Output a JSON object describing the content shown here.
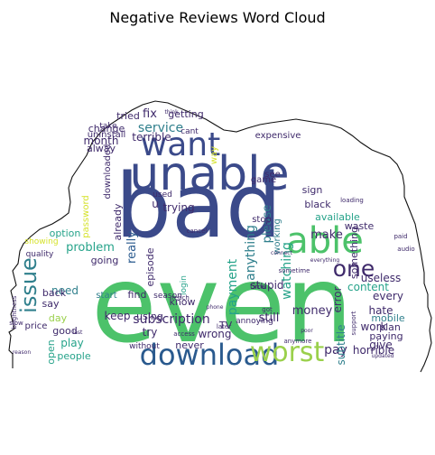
{
  "chart_data": {
    "type": "wordcloud",
    "title": "Negative Reviews Word Cloud",
    "palette": [
      "#3b4a8a",
      "#4cc26a",
      "#2f7f8c",
      "#3f2a6b",
      "#9ad04b",
      "#d5e22a",
      "#26a38a",
      "#2a5a8e",
      "#56106c",
      "#7b2e8a"
    ],
    "words": [
      {
        "text": "even",
        "weight": 100,
        "color": "#4cc26a"
      },
      {
        "text": "bad",
        "weight": 92,
        "color": "#3b4a8a"
      },
      {
        "text": "unable",
        "weight": 52,
        "color": "#3b4a8a"
      },
      {
        "text": "able",
        "weight": 40,
        "color": "#4cc26a"
      },
      {
        "text": "want",
        "weight": 35,
        "color": "#3b4a8a"
      },
      {
        "text": "download",
        "weight": 33,
        "color": "#2a5a8e"
      },
      {
        "text": "worst",
        "weight": 30,
        "color": "#9ad04b"
      },
      {
        "text": "one",
        "weight": 24,
        "color": "#3f2a6b"
      },
      {
        "text": "issue",
        "weight": 22,
        "color": "#2f7f8c"
      },
      {
        "text": "service",
        "weight": 14,
        "color": "#2f7f8c"
      },
      {
        "text": "terrible",
        "weight": 12,
        "color": "#3f2a6b"
      },
      {
        "text": "month",
        "weight": 12,
        "color": "#3f2a6b"
      },
      {
        "text": "subscription",
        "weight": 12,
        "color": "#3f2a6b"
      },
      {
        "text": "payment",
        "weight": 12,
        "color": "#26a38a"
      },
      {
        "text": "anything",
        "weight": 12,
        "color": "#2f7f8c"
      },
      {
        "text": "watching",
        "weight": 12,
        "color": "#26a38a"
      },
      {
        "text": "pay",
        "weight": 13,
        "color": "#3f2a6b"
      },
      {
        "text": "really",
        "weight": 11,
        "color": "#2a5a8e"
      },
      {
        "text": "problem",
        "weight": 11,
        "color": "#26a38a"
      },
      {
        "text": "please",
        "weight": 11,
        "color": "#2f7f8c"
      },
      {
        "text": "money",
        "weight": 11,
        "color": "#3f2a6b"
      },
      {
        "text": "make",
        "weight": 11,
        "color": "#3f2a6b"
      },
      {
        "text": "fix",
        "weight": 11,
        "color": "#3f2a6b"
      },
      {
        "text": "stupid",
        "weight": 10,
        "color": "#3f2a6b"
      },
      {
        "text": "trying",
        "weight": 10,
        "color": "#3f2a6b"
      },
      {
        "text": "need",
        "weight": 10,
        "color": "#2f7f8c"
      },
      {
        "text": "still",
        "weight": 11,
        "color": "#3f2a6b"
      },
      {
        "text": "error",
        "weight": 10,
        "color": "#3f2a6b"
      },
      {
        "text": "subtitle",
        "weight": 10,
        "color": "#2f7f8c"
      },
      {
        "text": "useless",
        "weight": 10,
        "color": "#3f2a6b"
      },
      {
        "text": "content",
        "weight": 10,
        "color": "#26a38a"
      },
      {
        "text": "hate",
        "weight": 10,
        "color": "#3f2a6b"
      },
      {
        "text": "work",
        "weight": 10,
        "color": "#3f2a6b"
      },
      {
        "text": "horrible",
        "weight": 10,
        "color": "#3f2a6b"
      },
      {
        "text": "give",
        "weight": 10,
        "color": "#3f2a6b"
      },
      {
        "text": "every",
        "weight": 10,
        "color": "#3f2a6b"
      },
      {
        "text": "play",
        "weight": 10,
        "color": "#26a38a"
      },
      {
        "text": "try",
        "weight": 10,
        "color": "#3f2a6b"
      },
      {
        "text": "wrong",
        "weight": 10,
        "color": "#3f2a6b"
      },
      {
        "text": "keep",
        "weight": 10,
        "color": "#3f2a6b"
      },
      {
        "text": "people",
        "weight": 9,
        "color": "#26a38a"
      },
      {
        "text": "open",
        "weight": 9,
        "color": "#26a38a"
      },
      {
        "text": "say",
        "weight": 9,
        "color": "#3f2a6b"
      },
      {
        "text": "day",
        "weight": 9,
        "color": "#9ad04b"
      },
      {
        "text": "back",
        "weight": 9,
        "color": "#3f2a6b"
      },
      {
        "text": "getting",
        "weight": 9,
        "color": "#3f2a6b"
      },
      {
        "text": "change",
        "weight": 9,
        "color": "#3f2a6b"
      },
      {
        "text": "tried",
        "weight": 9,
        "color": "#3f2a6b"
      },
      {
        "text": "alway",
        "weight": 9,
        "color": "#3f2a6b"
      },
      {
        "text": "option",
        "weight": 9,
        "color": "#26a38a"
      },
      {
        "text": "going",
        "weight": 8,
        "color": "#3f2a6b"
      },
      {
        "text": "episode",
        "weight": 9,
        "color": "#3f2a6b"
      },
      {
        "text": "already",
        "weight": 9,
        "color": "#3f2a6b"
      },
      {
        "text": "find",
        "weight": 8,
        "color": "#3f2a6b"
      },
      {
        "text": "know",
        "weight": 8,
        "color": "#3f2a6b"
      },
      {
        "text": "using",
        "weight": 8,
        "color": "#3f2a6b"
      },
      {
        "text": "never",
        "weight": 8,
        "color": "#3f2a6b"
      },
      {
        "text": "TV",
        "weight": 9,
        "color": "#3f2a6b"
      },
      {
        "text": "sign",
        "weight": 8,
        "color": "#3f2a6b"
      },
      {
        "text": "black",
        "weight": 8,
        "color": "#3f2a6b"
      },
      {
        "text": "available",
        "weight": 8,
        "color": "#26a38a"
      },
      {
        "text": "waste",
        "weight": 8,
        "color": "#3f2a6b"
      },
      {
        "text": "something",
        "weight": 8,
        "color": "#3f2a6b"
      },
      {
        "text": "paying",
        "weight": 8,
        "color": "#3f2a6b"
      },
      {
        "text": "plan",
        "weight": 8,
        "color": "#3f2a6b"
      },
      {
        "text": "mobile",
        "weight": 8,
        "color": "#2f7f8c"
      },
      {
        "text": "working",
        "weight": 8,
        "color": "#2f7f8c"
      },
      {
        "text": "see",
        "weight": 8,
        "color": "#3f2a6b"
      },
      {
        "text": "game",
        "weight": 7,
        "color": "#3f2a6b"
      },
      {
        "text": "way",
        "weight": 7,
        "color": "#d5e22a"
      },
      {
        "text": "good",
        "weight": 8,
        "color": "#3f2a6b"
      },
      {
        "text": "start",
        "weight": 7,
        "color": "#2f7f8c"
      },
      {
        "text": "price",
        "weight": 7,
        "color": "#3f2a6b"
      },
      {
        "text": "quality",
        "weight": 6,
        "color": "#3f2a6b"
      },
      {
        "text": "expensive",
        "weight": 7,
        "color": "#3f2a6b"
      },
      {
        "text": "downloaded",
        "weight": 7,
        "color": "#3f2a6b"
      },
      {
        "text": "uninstall",
        "weight": 7,
        "color": "#3f2a6b"
      },
      {
        "text": "take",
        "weight": 7,
        "color": "#3f2a6b"
      },
      {
        "text": "cant",
        "weight": 7,
        "color": "#3f2a6b"
      },
      {
        "text": "used",
        "weight": 6,
        "color": "#3f2a6b"
      },
      {
        "text": "stop",
        "weight": 7,
        "color": "#3f2a6b"
      },
      {
        "text": "login",
        "weight": 6,
        "color": "#26a38a"
      },
      {
        "text": "without",
        "weight": 6,
        "color": "#3f2a6b"
      },
      {
        "text": "season",
        "weight": 6,
        "color": "#3f2a6b"
      },
      {
        "text": "password",
        "weight": 7,
        "color": "#d5e22a"
      },
      {
        "text": "showing",
        "weight": 6,
        "color": "#d5e22a"
      },
      {
        "text": "annoying",
        "weight": 6,
        "color": "#3f2a6b"
      },
      {
        "text": "access",
        "weight": 5,
        "color": "#3f2a6b"
      },
      {
        "text": "anymore",
        "weight": 5,
        "color": "#3f2a6b"
      },
      {
        "text": "got",
        "weight": 5,
        "color": "#3f2a6b"
      },
      {
        "text": "time",
        "weight": 5,
        "color": "#3f2a6b"
      },
      {
        "text": "u",
        "weight": 9,
        "color": "#3f2a6b"
      },
      {
        "text": "audio",
        "weight": 5,
        "color": "#3f2a6b"
      },
      {
        "text": "reach",
        "weight": 5,
        "color": "#3f2a6b"
      },
      {
        "text": "cancel",
        "weight": 5,
        "color": "#3f2a6b"
      },
      {
        "text": "everything",
        "weight": 5,
        "color": "#3f2a6b"
      },
      {
        "text": "sometime",
        "weight": 5,
        "color": "#3f2a6b"
      },
      {
        "text": "later",
        "weight": 5,
        "color": "#3f2a6b"
      },
      {
        "text": "loading",
        "weight": 5,
        "color": "#3f2a6b"
      },
      {
        "text": "slow",
        "weight": 5,
        "color": "#3f2a6b"
      },
      {
        "text": "support",
        "weight": 5,
        "color": "#3f2a6b"
      },
      {
        "text": "paid",
        "weight": 5,
        "color": "#3f2a6b"
      },
      {
        "text": "reason",
        "weight": 5,
        "color": "#3f2a6b"
      },
      {
        "text": "updated",
        "weight": 5,
        "color": "#3f2a6b"
      },
      {
        "text": "brightness",
        "weight": 5,
        "color": "#3f2a6b"
      },
      {
        "text": "connect",
        "weight": 5,
        "color": "#3f2a6b"
      },
      {
        "text": "phone",
        "weight": 5,
        "color": "#3f2a6b"
      },
      {
        "text": "poor",
        "weight": 5,
        "color": "#3f2a6b"
      },
      {
        "text": "think",
        "weight": 5,
        "color": "#3f2a6b"
      },
      {
        "text": "last",
        "weight": 5,
        "color": "#3f2a6b"
      }
    ]
  }
}
